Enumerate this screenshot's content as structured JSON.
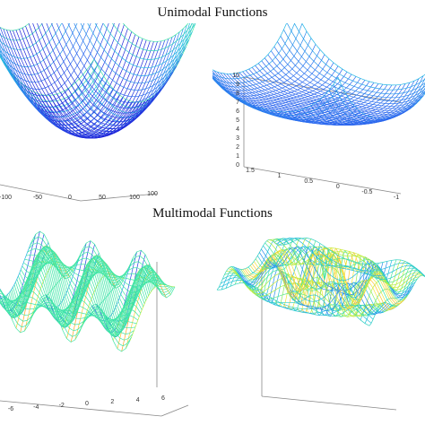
{
  "figure": {
    "top_heading": "Unimodal Functions",
    "bottom_heading": "Multimodal Functions"
  },
  "colormap": [
    "#1e22d8",
    "#2f6df0",
    "#1fb7e6",
    "#3ee6a6",
    "#b6ee3b",
    "#ffe13a",
    "#ff8c1a"
  ],
  "chart_data": [
    {
      "type": "surface",
      "function": "unimodal-bowl",
      "x_ticks": [
        "-100",
        "-50",
        "0",
        "50",
        "100"
      ],
      "y_ticks": [
        "100"
      ],
      "z_ticks": []
    },
    {
      "type": "surface",
      "function": "unimodal-flat-bowl",
      "x_ticks": [
        "1.5",
        "1",
        "0.5",
        "0",
        "-0.5",
        "-1"
      ],
      "y_ticks": [],
      "z_ticks": [
        "10",
        "9",
        "8",
        "7",
        "6",
        "5",
        "4",
        "3",
        "2",
        "1",
        "0"
      ]
    },
    {
      "type": "surface",
      "function": "multimodal-wave",
      "x_ticks": [
        "-6",
        "-4",
        "-2",
        "0",
        "2",
        "4",
        "6"
      ],
      "y_ticks": [],
      "z_ticks": []
    },
    {
      "type": "surface",
      "function": "multimodal-ripple",
      "x_ticks": [],
      "y_ticks": [],
      "z_ticks": []
    }
  ]
}
